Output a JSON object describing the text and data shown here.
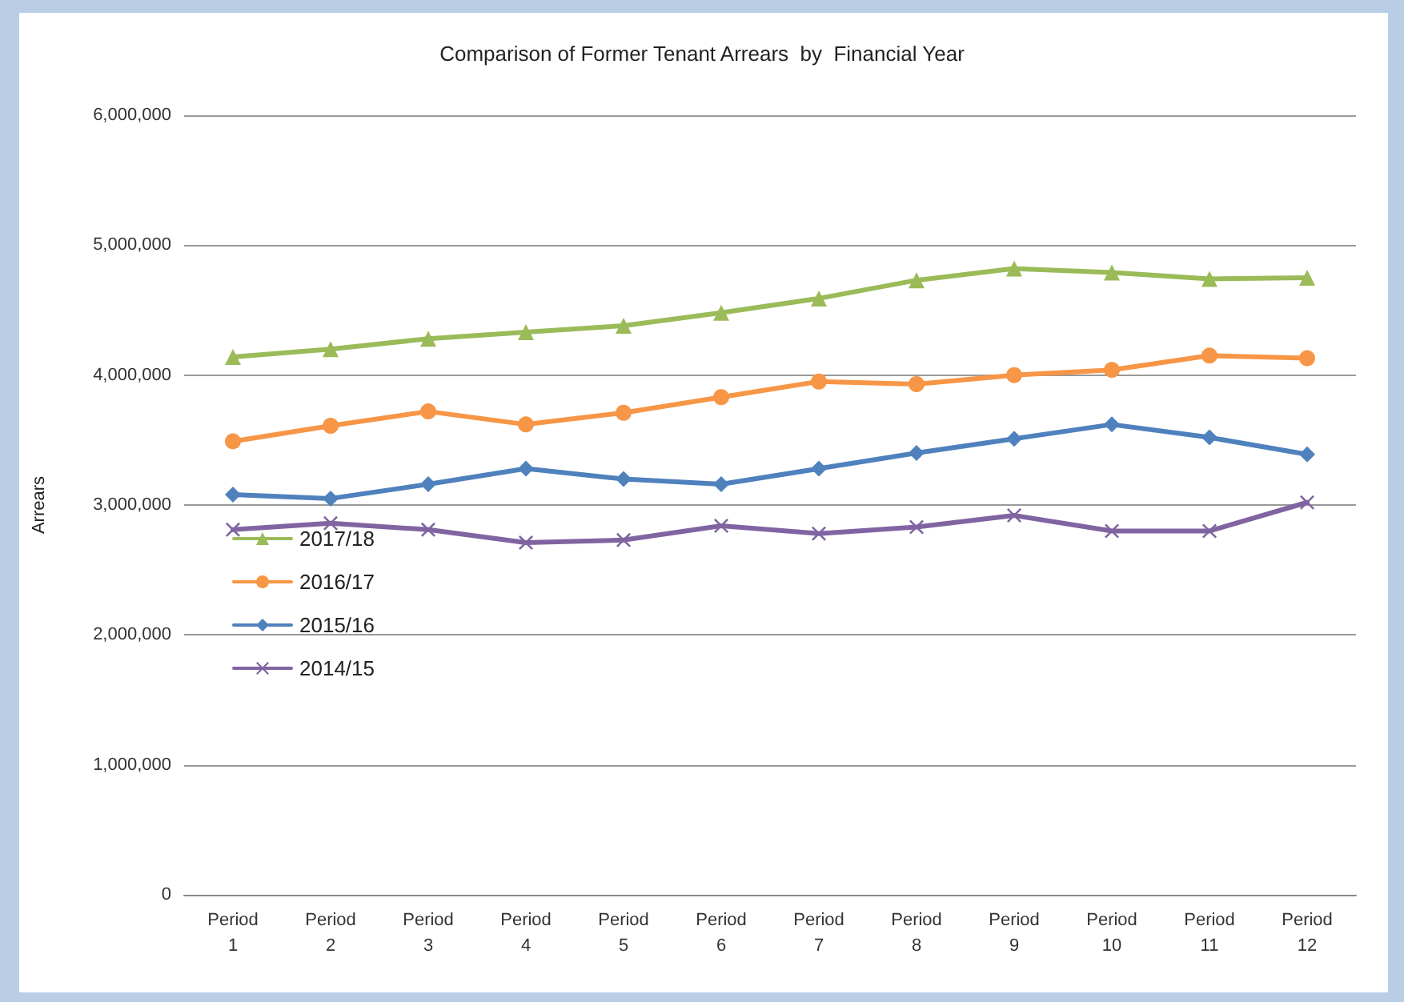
{
  "chart_data": {
    "type": "line",
    "title": "Comparison of Former Tenant Arrears  by  Financial Year",
    "ylabel": "Arrears",
    "categories": [
      "Period\n1",
      "Period\n2",
      "Period\n3",
      "Period\n4",
      "Period\n5",
      "Period\n6",
      "Period\n7",
      "Period\n8",
      "Period\n9",
      "Period\n10",
      "Period\n11",
      "Period\n12"
    ],
    "series": [
      {
        "name": "2017/18",
        "color": "#9bbb59",
        "marker": "triangle",
        "values": [
          4140000,
          4200000,
          4280000,
          4330000,
          4380000,
          4480000,
          4590000,
          4730000,
          4820000,
          4790000,
          4740000,
          4750000
        ]
      },
      {
        "name": "2016/17",
        "color": "#f79646",
        "marker": "circle",
        "values": [
          3490000,
          3610000,
          3720000,
          3620000,
          3710000,
          3830000,
          3950000,
          3930000,
          4000000,
          4040000,
          4150000,
          4130000
        ]
      },
      {
        "name": "2015/16",
        "color": "#4f81bd",
        "marker": "diamond",
        "values": [
          3080000,
          3050000,
          3160000,
          3280000,
          3200000,
          3160000,
          3280000,
          3400000,
          3510000,
          3620000,
          3520000,
          3390000
        ]
      },
      {
        "name": "2014/15",
        "color": "#8064a2",
        "marker": "cross",
        "values": [
          2810000,
          2860000,
          2810000,
          2710000,
          2730000,
          2840000,
          2780000,
          2830000,
          2920000,
          2800000,
          2800000,
          3020000
        ]
      }
    ],
    "ylim": [
      0,
      6000000
    ],
    "yticks": [
      {
        "value": 0,
        "label": "0"
      },
      {
        "value": 1000000,
        "label": "1,000,000"
      },
      {
        "value": 2000000,
        "label": "2,000,000"
      },
      {
        "value": 3000000,
        "label": "3,000,000"
      },
      {
        "value": 4000000,
        "label": "4,000,000"
      },
      {
        "value": 5000000,
        "label": "5,000,000"
      },
      {
        "value": 6000000,
        "label": "6,000,000"
      }
    ],
    "grid": "y",
    "legend": "left",
    "line_style": "solid"
  }
}
